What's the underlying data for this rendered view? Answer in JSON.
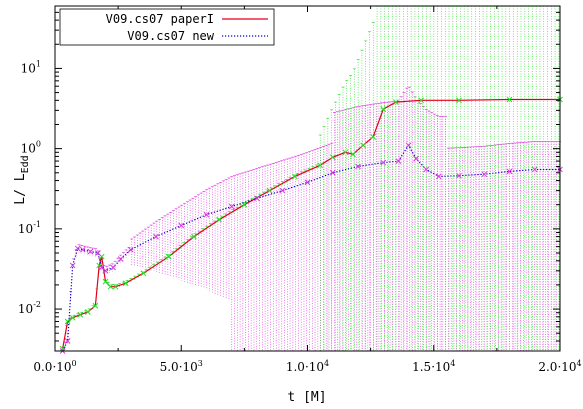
{
  "chart_data": {
    "type": "line",
    "title": "",
    "xlabel": "t [M]",
    "ylabel_main": "L/ L",
    "ylabel_sub": "Edd",
    "xlim": [
      0,
      20000
    ],
    "ylim": [
      0.003,
      60
    ],
    "yscale": "log",
    "grid": false,
    "legend_position": "top-left",
    "x_ticks": [
      {
        "value": 0,
        "mant": "0.0",
        "exp": "0"
      },
      {
        "value": 5000,
        "mant": "5.0",
        "exp": "3"
      },
      {
        "value": 10000,
        "mant": "1.0",
        "exp": "4"
      },
      {
        "value": 15000,
        "mant": "1.5",
        "exp": "4"
      },
      {
        "value": 20000,
        "mant": "2.0",
        "exp": "4"
      }
    ],
    "y_ticks": [
      {
        "value": 0.01,
        "base": "10",
        "exp": "-2"
      },
      {
        "value": 0.1,
        "base": "10",
        "exp": "-1"
      },
      {
        "value": 1,
        "base": "10",
        "exp": "0"
      },
      {
        "value": 10,
        "base": "10",
        "exp": "1"
      }
    ],
    "series": [
      {
        "name": "V09.cs07 paperI",
        "color": "#e3001b",
        "style": "solid",
        "errorbar_color": "#22dd22",
        "x": [
          300,
          500,
          700,
          1000,
          1300,
          1600,
          1750,
          1850,
          2000,
          2200,
          2400,
          2800,
          3500,
          4500,
          5500,
          6500,
          7500,
          8500,
          9500,
          10500,
          11000,
          11500,
          11800,
          12200,
          12600,
          13000,
          13500,
          14500,
          16000,
          18000,
          20000
        ],
        "y": [
          0.0032,
          0.007,
          0.0078,
          0.0085,
          0.0092,
          0.011,
          0.035,
          0.045,
          0.022,
          0.019,
          0.019,
          0.021,
          0.028,
          0.045,
          0.08,
          0.13,
          0.2,
          0.3,
          0.45,
          0.62,
          0.78,
          0.9,
          0.85,
          1.1,
          1.4,
          3.1,
          3.8,
          4.0,
          4.0,
          4.1,
          4.1
        ]
      },
      {
        "name": "V09.cs07 new",
        "color": "#0000cc",
        "style": "dotted",
        "errorbar_color": "#dd33dd",
        "x": [
          300,
          500,
          700,
          900,
          1100,
          1400,
          1700,
          1850,
          2000,
          2300,
          2600,
          3000,
          4000,
          5000,
          6000,
          7000,
          8000,
          9000,
          10000,
          11000,
          12000,
          13000,
          13600,
          14000,
          14300,
          14700,
          15200,
          16000,
          17000,
          18000,
          19000,
          20000
        ],
        "y": [
          0.003,
          0.004,
          0.035,
          0.057,
          0.055,
          0.052,
          0.05,
          0.033,
          0.03,
          0.033,
          0.042,
          0.055,
          0.08,
          0.11,
          0.15,
          0.19,
          0.24,
          0.3,
          0.38,
          0.5,
          0.6,
          0.67,
          0.7,
          1.1,
          0.75,
          0.55,
          0.45,
          0.46,
          0.48,
          0.52,
          0.55,
          0.55
        ]
      }
    ]
  }
}
